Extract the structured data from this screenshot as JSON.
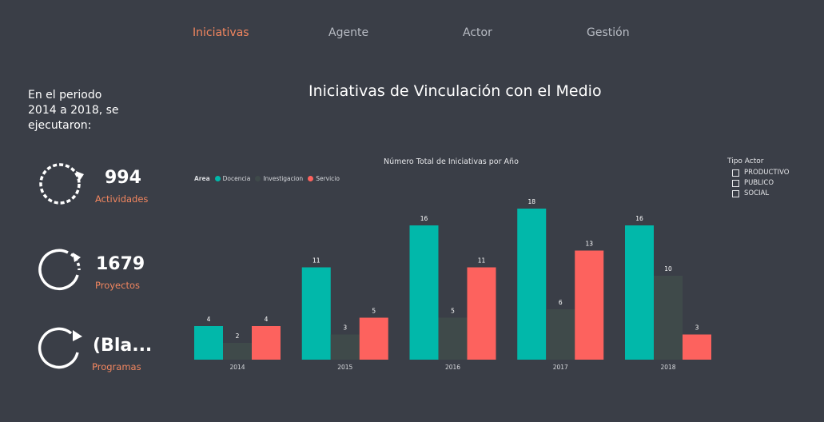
{
  "nav": {
    "tabs": [
      {
        "label": "Iniciativas",
        "active": true
      },
      {
        "label": "Agente",
        "active": false
      },
      {
        "label": "Actor",
        "active": false
      },
      {
        "label": "Gestión",
        "active": false
      }
    ]
  },
  "intro": {
    "text": "En el periodo 2014 a 2018, se ejecutaron:"
  },
  "report_title": "Iniciativas de Vinculación con el Medio",
  "kpis": [
    {
      "value": "994",
      "label": "Actividades",
      "icon": "dashed-circular-arrow-icon"
    },
    {
      "value": "1679",
      "label": "Proyectos",
      "icon": "half-dashed-circular-arrow-icon"
    },
    {
      "value": "(Bla...",
      "label": "Programas",
      "icon": "circular-arrow-icon"
    }
  ],
  "slicer": {
    "title": "Tipo Actor",
    "options": [
      "PRODUCTIVO",
      "PUBLICO",
      "SOCIAL"
    ]
  },
  "colors": {
    "background": "#3a3e47",
    "accent": "#f2865f",
    "docencia": "#01b8aa",
    "investigacion": "#3f4a4a",
    "servicio": "#fd625e"
  },
  "chart_data": {
    "type": "bar",
    "title": "Número Total de Iniciativas por Año",
    "legend_title": "Area",
    "legend_position": "top-left",
    "categories": [
      "2014",
      "2015",
      "2016",
      "2017",
      "2018"
    ],
    "series": [
      {
        "name": "Docencia",
        "color": "#01b8aa",
        "values": [
          4,
          11,
          16,
          18,
          16
        ]
      },
      {
        "name": "Investigacion",
        "color": "#3f4a4a",
        "values": [
          2,
          3,
          5,
          6,
          10
        ]
      },
      {
        "name": "Servicio",
        "color": "#fd625e",
        "values": [
          4,
          5,
          11,
          13,
          3
        ]
      }
    ],
    "ylim": [
      0,
      18
    ],
    "grid": false,
    "xlabel": "",
    "ylabel": ""
  }
}
